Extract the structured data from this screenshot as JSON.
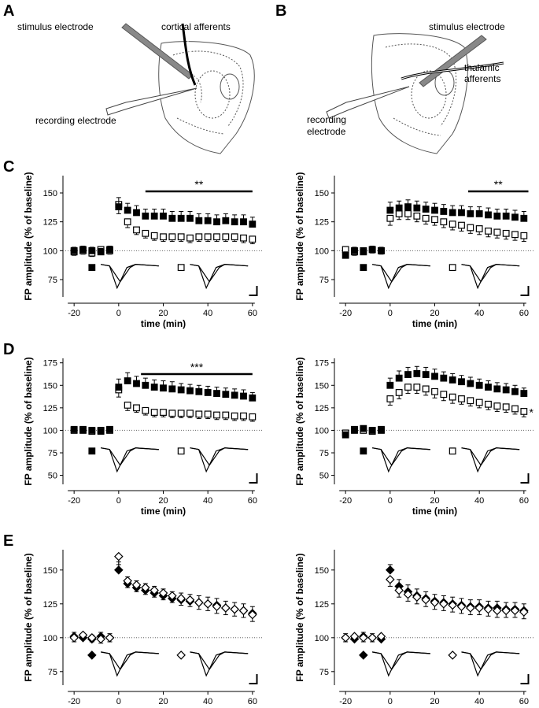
{
  "panel_labels": [
    "A",
    "B"
  ],
  "diagrams": [
    {
      "labels": [
        "stimulus electrode",
        "cortical afferents",
        "recording electrode"
      ]
    },
    {
      "labels": [
        "stimulus electrode",
        "thalamic",
        "afferents",
        "recording",
        "electrode"
      ]
    }
  ],
  "chart_data": [
    {
      "type": "scatter",
      "panel": "C",
      "x": [
        -20,
        -16,
        -12,
        -8,
        -4,
        0,
        4,
        8,
        12,
        16,
        20,
        24,
        28,
        32,
        36,
        40,
        44,
        48,
        52,
        56,
        60
      ],
      "series": [
        {
          "marker": "square",
          "fill": "open",
          "color": "#000000",
          "values": [
            99,
            100,
            98,
            101,
            100,
            140,
            125,
            118,
            115,
            113,
            112,
            112,
            112,
            111,
            112,
            112,
            112,
            112,
            112,
            111,
            110
          ],
          "errors": [
            3,
            3,
            3,
            3,
            3,
            8,
            5,
            4,
            4,
            4,
            4,
            4,
            4,
            4,
            4,
            4,
            4,
            4,
            4,
            4,
            4
          ]
        },
        {
          "marker": "square",
          "fill": "filled",
          "color": "#000000",
          "values": [
            100,
            101,
            100,
            99,
            101,
            138,
            135,
            133,
            130,
            130,
            130,
            128,
            128,
            128,
            126,
            126,
            125,
            126,
            125,
            125,
            123
          ],
          "errors": [
            3,
            3,
            3,
            3,
            3,
            8,
            6,
            6,
            6,
            6,
            6,
            6,
            6,
            6,
            6,
            6,
            6,
            6,
            6,
            6,
            6
          ]
        }
      ],
      "xlim": [
        -25,
        65
      ],
      "ylim": [
        60,
        165
      ],
      "xticks": [
        -20,
        0,
        20,
        40,
        60
      ],
      "yticks": [
        75,
        100,
        125,
        150
      ],
      "xlabel": "time (min)",
      "ylabel": "FP amplitude (% of baseline)",
      "reference_line": 100,
      "sig_bar": [
        12,
        60
      ],
      "sig_label": "**"
    },
    {
      "type": "scatter",
      "x": [
        -20,
        -16,
        -12,
        -8,
        -4,
        0,
        4,
        8,
        12,
        16,
        20,
        24,
        28,
        32,
        36,
        40,
        44,
        48,
        52,
        56,
        60
      ],
      "series": [
        {
          "marker": "square",
          "fill": "open",
          "color": "#000000",
          "values": [
            101,
            99,
            100,
            101,
            100,
            128,
            132,
            132,
            130,
            128,
            127,
            125,
            123,
            122,
            120,
            119,
            117,
            116,
            115,
            114,
            113
          ],
          "errors": [
            3,
            3,
            3,
            3,
            3,
            6,
            5,
            5,
            5,
            5,
            5,
            5,
            5,
            5,
            5,
            5,
            5,
            5,
            5,
            5,
            5
          ]
        },
        {
          "marker": "square",
          "fill": "filled",
          "color": "#000000",
          "values": [
            96,
            100,
            99,
            101,
            100,
            135,
            137,
            138,
            137,
            136,
            135,
            134,
            133,
            133,
            132,
            132,
            131,
            130,
            130,
            129,
            128
          ],
          "errors": [
            3,
            3,
            3,
            3,
            3,
            7,
            6,
            6,
            6,
            6,
            6,
            6,
            6,
            6,
            6,
            6,
            6,
            6,
            6,
            6,
            6
          ]
        }
      ],
      "xlim": [
        -25,
        65
      ],
      "ylim": [
        60,
        165
      ],
      "xticks": [
        -20,
        0,
        20,
        40,
        60
      ],
      "yticks": [
        75,
        100,
        125,
        150
      ],
      "xlabel": "time (min)",
      "ylabel": "FP amplitude (% of baseline)",
      "reference_line": 100,
      "sig_bar": [
        35,
        62
      ],
      "sig_label": "**"
    },
    {
      "type": "scatter",
      "panel": "D",
      "x": [
        -20,
        -16,
        -12,
        -8,
        -4,
        0,
        4,
        8,
        12,
        16,
        20,
        24,
        28,
        32,
        36,
        40,
        44,
        48,
        52,
        56,
        60
      ],
      "series": [
        {
          "marker": "square",
          "fill": "open",
          "color": "#000000",
          "values": [
            100,
            101,
            99,
            100,
            100,
            145,
            128,
            125,
            122,
            120,
            120,
            119,
            119,
            119,
            118,
            118,
            117,
            117,
            116,
            116,
            115
          ],
          "errors": [
            3,
            3,
            3,
            3,
            3,
            8,
            6,
            5,
            5,
            5,
            5,
            5,
            5,
            5,
            5,
            5,
            5,
            5,
            5,
            5,
            5
          ]
        },
        {
          "marker": "square",
          "fill": "filled",
          "color": "#000000",
          "values": [
            101,
            100,
            100,
            99,
            101,
            148,
            155,
            152,
            150,
            148,
            147,
            146,
            145,
            144,
            143,
            142,
            141,
            140,
            139,
            138,
            136
          ],
          "errors": [
            3,
            3,
            3,
            3,
            3,
            9,
            9,
            8,
            8,
            8,
            8,
            8,
            7,
            7,
            7,
            7,
            7,
            7,
            7,
            7,
            6
          ]
        }
      ],
      "xlim": [
        -25,
        65
      ],
      "ylim": [
        40,
        180
      ],
      "xticks": [
        -20,
        0,
        20,
        40,
        60
      ],
      "yticks": [
        50,
        75,
        100,
        125,
        150,
        175
      ],
      "xlabel": "time (min)",
      "ylabel": "FP amplitude (% of baseline)",
      "reference_line": 100,
      "sig_bar": [
        10,
        60
      ],
      "sig_label": "***"
    },
    {
      "type": "scatter",
      "x": [
        -20,
        -16,
        -12,
        -8,
        -4,
        0,
        4,
        8,
        12,
        16,
        20,
        24,
        28,
        32,
        36,
        40,
        44,
        48,
        52,
        56,
        60
      ],
      "series": [
        {
          "marker": "square",
          "fill": "open",
          "color": "#000000",
          "values": [
            97,
            101,
            100,
            99,
            101,
            135,
            142,
            148,
            148,
            146,
            143,
            140,
            137,
            135,
            133,
            131,
            129,
            127,
            126,
            124,
            121
          ],
          "errors": [
            3,
            3,
            3,
            3,
            3,
            7,
            7,
            7,
            7,
            7,
            7,
            7,
            7,
            6,
            6,
            6,
            6,
            6,
            6,
            6,
            6
          ]
        },
        {
          "marker": "square",
          "fill": "filled",
          "color": "#000000",
          "values": [
            95,
            100,
            102,
            100,
            100,
            150,
            158,
            162,
            163,
            162,
            160,
            158,
            156,
            154,
            152,
            150,
            148,
            146,
            145,
            143,
            141
          ],
          "errors": [
            3,
            3,
            3,
            3,
            3,
            8,
            8,
            8,
            8,
            8,
            8,
            7,
            7,
            7,
            7,
            7,
            7,
            7,
            7,
            7,
            6
          ]
        }
      ],
      "xlim": [
        -25,
        65
      ],
      "ylim": [
        40,
        180
      ],
      "xticks": [
        -20,
        0,
        20,
        40,
        60
      ],
      "yticks": [
        50,
        75,
        100,
        125,
        150,
        175
      ],
      "xlabel": "time (min)",
      "ylabel": "FP amplitude (% of baseline)",
      "reference_line": 100,
      "sig_label": "*"
    },
    {
      "type": "scatter",
      "panel": "E",
      "x": [
        -20,
        -16,
        -12,
        -8,
        -4,
        0,
        4,
        8,
        12,
        16,
        20,
        24,
        28,
        32,
        36,
        40,
        44,
        48,
        52,
        56,
        60
      ],
      "series": [
        {
          "marker": "diamond",
          "fill": "filled",
          "color": "#000000",
          "values": [
            101,
            100,
            99,
            101,
            100,
            150,
            140,
            137,
            135,
            133,
            131,
            129,
            128,
            127,
            126,
            125,
            124,
            122,
            121,
            120,
            118
          ],
          "errors": [
            3,
            3,
            3,
            3,
            3,
            6,
            5,
            5,
            5,
            5,
            5,
            5,
            5,
            5,
            5,
            5,
            5,
            5,
            5,
            5,
            5
          ]
        },
        {
          "marker": "diamond",
          "fill": "open",
          "color": "#000000",
          "values": [
            100,
            102,
            100,
            99,
            100,
            160,
            142,
            139,
            137,
            135,
            133,
            131,
            129,
            128,
            126,
            125,
            123,
            122,
            121,
            120,
            117
          ],
          "errors": [
            3,
            3,
            3,
            3,
            3,
            6,
            5,
            5,
            5,
            5,
            5,
            5,
            5,
            5,
            5,
            5,
            5,
            5,
            5,
            5,
            5
          ]
        }
      ],
      "xlim": [
        -25,
        65
      ],
      "ylim": [
        65,
        165
      ],
      "xticks": [
        -20,
        0,
        20,
        40,
        60
      ],
      "yticks": [
        75,
        100,
        125,
        150
      ],
      "xlabel": "time (min)",
      "ylabel": "FP amplitude (% of baseline)",
      "reference_line": 100
    },
    {
      "type": "scatter",
      "x": [
        -20,
        -16,
        -12,
        -8,
        -4,
        0,
        4,
        8,
        12,
        16,
        20,
        24,
        28,
        32,
        36,
        40,
        44,
        48,
        52,
        56,
        60
      ],
      "series": [
        {
          "marker": "diamond",
          "fill": "filled",
          "color": "#000000",
          "values": [
            100,
            99,
            101,
            100,
            99,
            150,
            138,
            134,
            131,
            129,
            127,
            126,
            125,
            124,
            123,
            123,
            122,
            122,
            121,
            121,
            120
          ],
          "errors": [
            3,
            3,
            3,
            3,
            3,
            4,
            5,
            5,
            5,
            5,
            5,
            5,
            5,
            5,
            5,
            5,
            5,
            5,
            5,
            5,
            5
          ]
        },
        {
          "marker": "diamond",
          "fill": "open",
          "color": "#000000",
          "values": [
            100,
            101,
            100,
            100,
            101,
            143,
            135,
            132,
            130,
            128,
            126,
            125,
            124,
            123,
            122,
            122,
            121,
            120,
            120,
            120,
            119
          ],
          "errors": [
            3,
            3,
            3,
            3,
            3,
            5,
            5,
            5,
            5,
            5,
            5,
            5,
            5,
            5,
            5,
            5,
            5,
            5,
            5,
            5,
            5
          ]
        }
      ],
      "xlim": [
        -25,
        65
      ],
      "ylim": [
        65,
        165
      ],
      "xticks": [
        -20,
        0,
        20,
        40,
        60
      ],
      "yticks": [
        75,
        100,
        125,
        150
      ],
      "xlabel": "time (min)",
      "ylabel": "FP amplitude (% of baseline)",
      "reference_line": 100
    }
  ]
}
